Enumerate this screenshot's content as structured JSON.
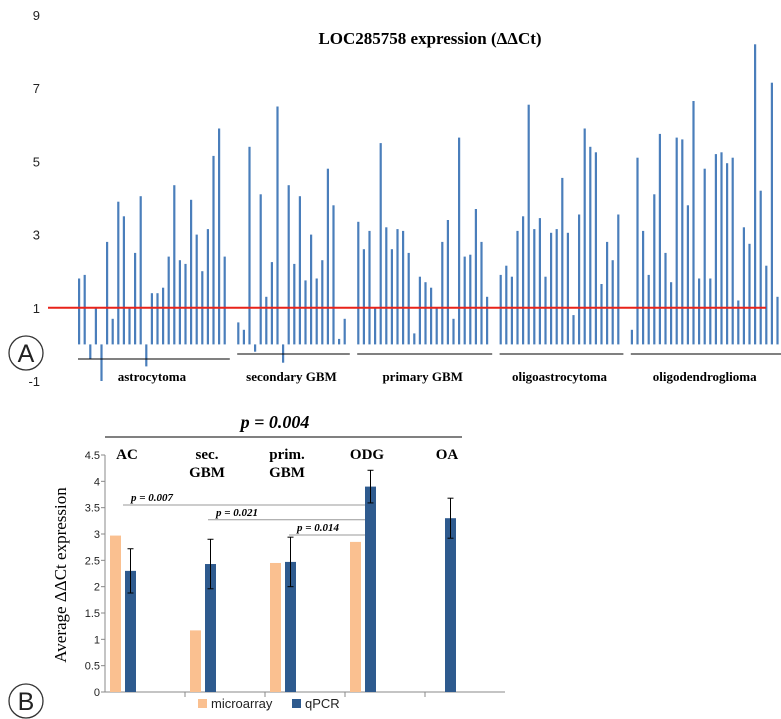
{
  "panel_letters": [
    "A",
    "B"
  ],
  "chart_data": [
    {
      "type": "bar",
      "title": "LOC285758 expression (ΔΔCt)",
      "xlabel": "",
      "ylabel": "",
      "ylim": [
        -1,
        9
      ],
      "yticks": [
        "9",
        "7",
        "5",
        "3",
        "1",
        "-1"
      ],
      "reference_line": {
        "value": 1,
        "color": "#e8231a"
      },
      "bar_color": "#4a7ebb",
      "groups": [
        {
          "name": "astrocytoma",
          "values": [
            1.8,
            1.9,
            -0.4,
            1.0,
            -1.0,
            2.8,
            0.7,
            3.9,
            3.5,
            1.0,
            2.5,
            4.05,
            -0.6,
            1.4,
            1.4,
            1.55,
            2.4,
            4.35,
            2.3,
            2.2,
            3.95,
            3.0,
            2.0,
            3.15,
            5.15,
            5.9,
            2.4
          ]
        },
        {
          "name": "secondary GBM",
          "values": [
            0.6,
            0.4,
            5.4,
            -0.2,
            4.1,
            1.3,
            2.25,
            6.5,
            -0.5,
            4.35,
            2.2,
            4.05,
            1.75,
            3.0,
            1.8,
            2.3,
            4.8,
            3.8,
            0.15,
            0.7
          ]
        },
        {
          "name": "primary GBM",
          "values": [
            3.35,
            2.6,
            3.1,
            1.0,
            5.5,
            3.2,
            2.6,
            3.15,
            3.1,
            2.5,
            0.3,
            1.85,
            1.7,
            1.55,
            1.0,
            2.8,
            3.4,
            0.7,
            5.65,
            2.4,
            2.45,
            3.7,
            2.8,
            1.3
          ]
        },
        {
          "name": "oligoastrocytoma",
          "values": [
            1.9,
            2.15,
            1.85,
            3.1,
            3.5,
            6.55,
            3.15,
            3.45,
            1.85,
            3.05,
            3.15,
            4.55,
            3.05,
            0.8,
            3.55,
            5.9,
            5.4,
            5.25,
            1.65,
            2.8,
            2.3,
            3.55
          ]
        },
        {
          "name": "oligodendroglioma",
          "values": [
            0.4,
            5.1,
            3.1,
            1.9,
            4.1,
            5.75,
            2.5,
            1.7,
            5.65,
            5.6,
            3.8,
            6.65,
            1.8,
            4.8,
            1.8,
            5.2,
            5.25,
            4.95,
            5.1,
            1.2,
            3.2,
            2.75,
            8.2,
            4.2,
            2.15,
            7.15,
            1.3
          ]
        }
      ]
    },
    {
      "type": "bar",
      "ylabel": "Average ΔΔCt expression",
      "xlabel": "",
      "ylim": [
        0,
        4.5
      ],
      "yticks": [
        "0",
        "0.5",
        "1",
        "1.5",
        "2",
        "2.5",
        "3",
        "3.5",
        "4",
        "4.5"
      ],
      "categories": [
        "AC",
        "sec. GBM",
        "prim. GBM",
        "ODG",
        "OA"
      ],
      "category_label_lines": [
        [
          "AC"
        ],
        [
          "sec.",
          "GBM"
        ],
        [
          "prim.",
          "GBM"
        ],
        [
          "ODG"
        ],
        [
          "OA"
        ]
      ],
      "series": [
        {
          "name": "microarray",
          "color": "#fac090",
          "values": [
            2.97,
            1.17,
            2.45,
            2.85,
            null
          ]
        },
        {
          "name": "qPCR",
          "color": "#2e5a8e",
          "values": [
            2.3,
            2.43,
            2.47,
            3.9,
            3.3
          ],
          "error": [
            0.42,
            0.47,
            0.47,
            0.31,
            0.38
          ]
        }
      ],
      "overall_p": "p = 0.004",
      "comparisons": [
        {
          "label": "p = 0.007",
          "y": 3.55
        },
        {
          "label": "p = 0.021",
          "y": 3.27
        },
        {
          "label": "p = 0.014",
          "y": 2.98
        }
      ],
      "legend": {
        "placement": "bottom-center",
        "items": [
          "microarray",
          "qPCR"
        ]
      }
    }
  ]
}
